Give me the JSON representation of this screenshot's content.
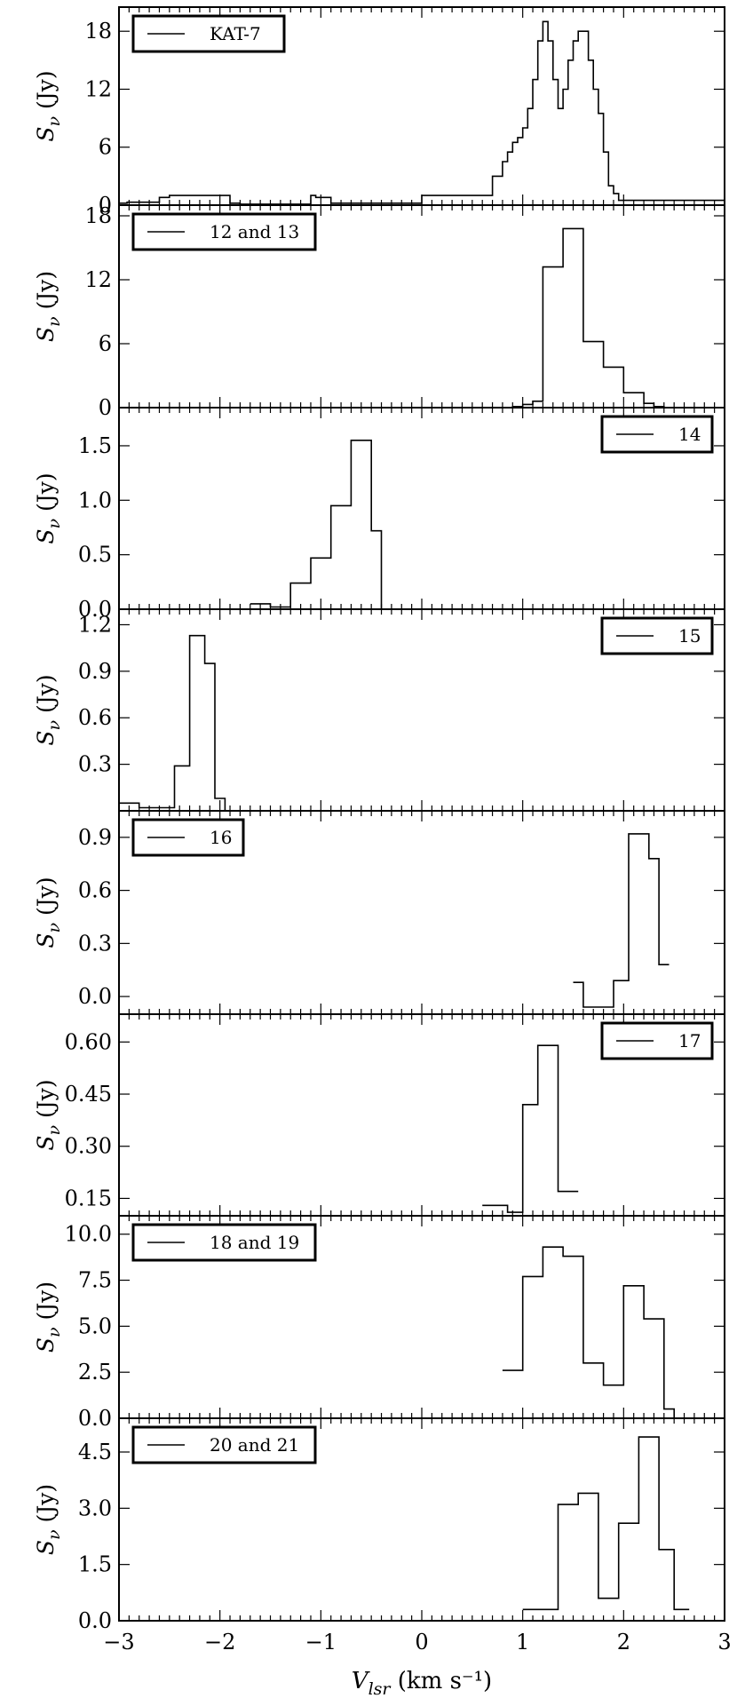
{
  "chart_data": [
    {
      "type": "line",
      "drawstyle": "step",
      "ylabel": "S_ν (Jy)",
      "legend": "KAT-7",
      "legend_loc": "top-left",
      "xlim": [
        -3,
        3
      ],
      "ylim": [
        0,
        20.5
      ],
      "yticks": [
        0,
        6,
        12,
        18
      ],
      "ytick_labels": [
        "0",
        "6",
        "12",
        "18"
      ],
      "x": [
        -3.0,
        -2.92,
        -2.6,
        -2.5,
        -1.9,
        -1.8,
        -1.1,
        -1.05,
        -0.9,
        0.0,
        0.7,
        0.8,
        0.85,
        0.9,
        0.95,
        1.0,
        1.05,
        1.1,
        1.15,
        1.2,
        1.25,
        1.3,
        1.35,
        1.4,
        1.45,
        1.5,
        1.55,
        1.6,
        1.65,
        1.7,
        1.75,
        1.8,
        1.85,
        1.9,
        1.95,
        2.0,
        2.05,
        2.1,
        2.2,
        2.85,
        3.0
      ],
      "y": [
        0.2,
        0.3,
        0.8,
        1.0,
        0.2,
        0.1,
        1.0,
        0.8,
        0.2,
        1.0,
        3.0,
        4.5,
        5.5,
        6.5,
        7.0,
        8.0,
        10.0,
        13.0,
        17.0,
        19.0,
        17.0,
        13.0,
        10.0,
        12.0,
        15.0,
        17.0,
        18.0,
        18.0,
        15.0,
        12.0,
        9.5,
        5.5,
        2.0,
        1.2,
        0.5,
        0.5,
        0.5,
        0.5,
        0.5,
        0.5,
        0.5
      ]
    },
    {
      "type": "line",
      "drawstyle": "step",
      "ylabel": "S_ν (Jy)",
      "legend": "12 and 13",
      "legend_loc": "top-left",
      "xlim": [
        -3,
        3
      ],
      "ylim": [
        0,
        19
      ],
      "yticks": [
        0,
        6,
        12,
        18
      ],
      "ytick_labels": [
        "0",
        "6",
        "12",
        "18"
      ],
      "x": [
        -3.0,
        0.9,
        1.0,
        1.1,
        1.2,
        1.3,
        1.4,
        1.5,
        1.6,
        1.7,
        1.8,
        1.9,
        2.0,
        2.1,
        2.2,
        2.3,
        2.4,
        3.0
      ],
      "y": [
        0.0,
        0.1,
        0.3,
        0.6,
        13.2,
        13.2,
        16.8,
        16.8,
        6.2,
        6.2,
        3.8,
        3.8,
        1.4,
        1.4,
        0.4,
        0.1,
        0.0,
        0.0
      ]
    },
    {
      "type": "line",
      "drawstyle": "step",
      "ylabel": "S_ν (Jy)",
      "legend": "14",
      "legend_loc": "top-right",
      "xlim": [
        -3,
        3
      ],
      "ylim": [
        0,
        1.85
      ],
      "yticks": [
        0.0,
        0.5,
        1.0,
        1.5
      ],
      "ytick_labels": [
        "0.0",
        "0.5",
        "1.0",
        "1.5"
      ],
      "x": [
        -1.7,
        -1.5,
        -1.3,
        -1.1,
        -0.9,
        -0.7,
        -0.5,
        -0.4
      ],
      "y": [
        0.05,
        0.02,
        0.24,
        0.47,
        0.95,
        1.55,
        0.72,
        0.0
      ]
    },
    {
      "type": "line",
      "drawstyle": "step",
      "ylabel": "S_ν (Jy)",
      "legend": "15",
      "legend_loc": "top-right",
      "xlim": [
        -3,
        3
      ],
      "ylim": [
        0.0,
        1.3
      ],
      "yticks": [
        0.3,
        0.6,
        0.9,
        1.2
      ],
      "ytick_labels": [
        "0.3",
        "0.6",
        "0.9",
        "1.2"
      ],
      "x": [
        -3.0,
        -2.8,
        -2.6,
        -2.45,
        -2.3,
        -2.15,
        -2.05,
        -1.95
      ],
      "y": [
        0.05,
        0.02,
        0.02,
        0.29,
        1.13,
        0.95,
        0.08,
        0.0
      ]
    },
    {
      "type": "line",
      "drawstyle": "step",
      "ylabel": "S_ν (Jy)",
      "legend": "16",
      "legend_loc": "top-left",
      "xlim": [
        -3,
        3
      ],
      "ylim": [
        -0.1,
        1.05
      ],
      "yticks": [
        0.0,
        0.3,
        0.6,
        0.9
      ],
      "ytick_labels": [
        "0.0",
        "0.3",
        "0.6",
        "0.9"
      ],
      "x": [
        1.5,
        1.6,
        1.75,
        1.9,
        2.05,
        2.25,
        2.35
      ],
      "y": [
        0.08,
        -0.06,
        -0.06,
        0.09,
        0.92,
        0.78,
        0.18
      ]
    },
    {
      "type": "line",
      "drawstyle": "step",
      "ylabel": "S_ν (Jy)",
      "legend": "17",
      "legend_loc": "top-right",
      "xlim": [
        -3,
        3
      ],
      "ylim": [
        0.1,
        0.68
      ],
      "yticks": [
        0.15,
        0.3,
        0.45,
        0.6
      ],
      "ytick_labels": [
        "0.15",
        "0.30",
        "0.45",
        "0.60"
      ],
      "x": [
        0.6,
        0.85,
        1.0,
        1.15,
        1.35,
        1.45
      ],
      "y": [
        0.13,
        0.11,
        0.42,
        0.59,
        0.17,
        0.17
      ]
    },
    {
      "type": "line",
      "drawstyle": "step",
      "ylabel": "S_ν (Jy)",
      "legend": "18 and 19",
      "legend_loc": "top-left",
      "xlim": [
        -3,
        3
      ],
      "ylim": [
        0,
        11
      ],
      "yticks": [
        0.0,
        2.5,
        5.0,
        7.5,
        10.0
      ],
      "ytick_labels": [
        "0.0",
        "2.5",
        "5.0",
        "7.5",
        "10.0"
      ],
      "x": [
        0.8,
        1.0,
        1.2,
        1.4,
        1.6,
        1.8,
        2.0,
        2.2,
        2.4,
        2.5
      ],
      "y": [
        2.6,
        7.7,
        9.3,
        8.8,
        3.0,
        1.8,
        7.2,
        5.4,
        0.5,
        0.0
      ]
    },
    {
      "type": "line",
      "drawstyle": "step",
      "ylabel": "S_ν (Jy)",
      "legend": "20 and 21",
      "legend_loc": "top-left",
      "xlim": [
        -3,
        3
      ],
      "ylim": [
        0,
        5.4
      ],
      "yticks": [
        0.0,
        1.5,
        3.0,
        4.5
      ],
      "ytick_labels": [
        "0.0",
        "1.5",
        "3.0",
        "4.5"
      ],
      "x": [
        1.0,
        1.35,
        1.55,
        1.75,
        1.95,
        2.15,
        2.35,
        2.5
      ],
      "y": [
        0.3,
        3.1,
        3.4,
        0.6,
        2.6,
        4.9,
        1.9,
        0.3
      ]
    }
  ],
  "x_axis": {
    "ticks": [
      -3,
      -2,
      -1,
      0,
      1,
      2,
      3
    ],
    "tick_labels": [
      "−3",
      "−2",
      "−1",
      "0",
      "1",
      "2",
      "3"
    ],
    "label": "V_lsr (km s⁻¹)"
  }
}
